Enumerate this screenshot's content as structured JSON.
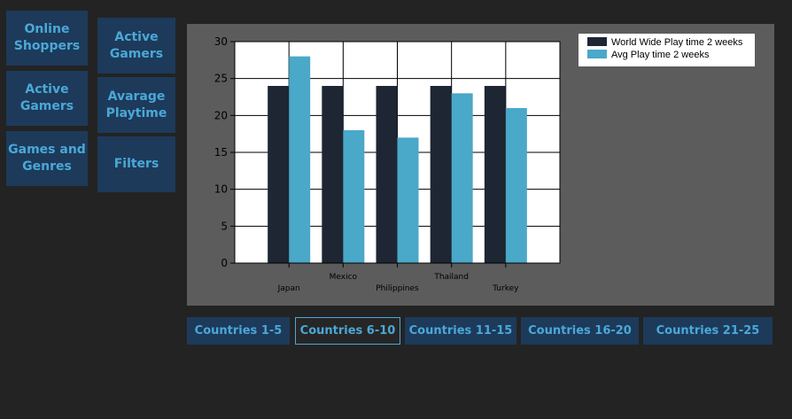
{
  "sidebar": {
    "col1": [
      {
        "label": "Online\nShoppers"
      },
      {
        "label": "Active\nGamers"
      },
      {
        "label": "Games and\nGenres"
      }
    ],
    "col2": [
      {
        "label": "Active\nGamers"
      },
      {
        "label": "Avarage\nPlaytime"
      },
      {
        "label": "Filters"
      }
    ]
  },
  "pagination": [
    {
      "label": "Countries 1-5",
      "active": false
    },
    {
      "label": "Countries 6-10",
      "active": true
    },
    {
      "label": "Countries 11-15",
      "active": false
    },
    {
      "label": "Countries 16-20",
      "active": false
    },
    {
      "label": "Countries 21-25",
      "active": false
    }
  ],
  "colors": {
    "series1": "#1e2633",
    "series2": "#4aa8c8",
    "accent": "#4aa8d8",
    "button_bg": "#1d3a5a"
  },
  "chart_data": {
    "type": "bar",
    "categories": [
      "Japan",
      "Mexico",
      "Philippines",
      "Thailand",
      "Turkey"
    ],
    "series": [
      {
        "name": "World Wide Play time 2 weeks",
        "values": [
          24,
          24,
          24,
          24,
          24
        ]
      },
      {
        "name": "Avg Play time 2 weeks",
        "values": [
          28,
          18,
          17,
          23,
          21
        ]
      }
    ],
    "ylim": [
      0,
      30
    ],
    "yticks": [
      0,
      5,
      10,
      15,
      20,
      25,
      30
    ],
    "grid": true,
    "legend": "top-right"
  }
}
